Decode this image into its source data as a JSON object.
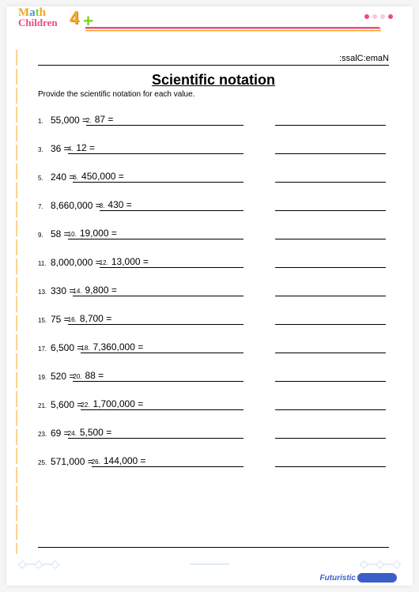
{
  "logo": {
    "line1_chars": [
      "M",
      "a",
      "t",
      "h"
    ],
    "line2": "Children",
    "four": "4",
    "plus": "+"
  },
  "dots": [
    "#e94b8a",
    "#f8c8dc",
    "#f8c8dc",
    "#e94b8a"
  ],
  "header": ":ssalC:emaN",
  "title": "Scientific notation",
  "instruction": "Provide the scientific notation for each value.",
  "problems": [
    {
      "n1": "1.",
      "v1": "55,000  =",
      "n2": "2.",
      "v2": "87  ="
    },
    {
      "n1": "3.",
      "v1": "36  =",
      "n2": "4.",
      "v2": "12  ="
    },
    {
      "n1": "5.",
      "v1": "240  =",
      "n2": "6.",
      "v2": "450,000  ="
    },
    {
      "n1": "7.",
      "v1": "8,660,000  =",
      "n2": "8.",
      "v2": "430  ="
    },
    {
      "n1": "9.",
      "v1": "58  =",
      "n2": "10.",
      "v2": "19,000  ="
    },
    {
      "n1": "11.",
      "v1": "8,000,000  =",
      "n2": "12.",
      "v2": "13,000  ="
    },
    {
      "n1": "13.",
      "v1": "330  =",
      "n2": "14.",
      "v2": "9,800  ="
    },
    {
      "n1": "15.",
      "v1": "75  =",
      "n2": "16.",
      "v2": "8,700  ="
    },
    {
      "n1": "17.",
      "v1": "6,500  =",
      "n2": "18.",
      "v2": "7,360,000  ="
    },
    {
      "n1": "19.",
      "v1": "520  =",
      "n2": "20.",
      "v2": "88  ="
    },
    {
      "n1": "21.",
      "v1": "5,600  =",
      "n2": "22.",
      "v2": "1,700,000  ="
    },
    {
      "n1": "23.",
      "v1": "69  =",
      "n2": "24.",
      "v2": "5,500  ="
    },
    {
      "n1": "25.",
      "v1": "571,000  =",
      "n2": "26.",
      "v2": "144,000  ="
    }
  ],
  "footer": "Futuristic"
}
